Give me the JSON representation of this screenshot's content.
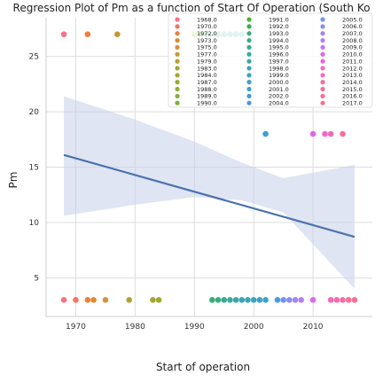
{
  "chart_data": {
    "type": "scatter",
    "title": "Regression Plot of Pm as a function of Start Of Operation (South Ko",
    "xlabel": "Start of operation",
    "ylabel": "Pm",
    "xlim": [
      1965,
      2020
    ],
    "ylim": [
      1.5,
      28.5
    ],
    "xticks": [
      1970,
      1980,
      1990,
      2000,
      2010
    ],
    "yticks": [
      5,
      10,
      15,
      20,
      25
    ],
    "grid": true,
    "legend_position": "top-right",
    "legend_entries": [
      {
        "label": "1968.0",
        "color": "#f77189"
      },
      {
        "label": "1970.0",
        "color": "#f6745f"
      },
      {
        "label": "1972.0",
        "color": "#ec7f3a"
      },
      {
        "label": "1973.0",
        "color": "#dd8a31"
      },
      {
        "label": "1975.0",
        "color": "#d2923b"
      },
      {
        "label": "1977.0",
        "color": "#c59932"
      },
      {
        "label": "1979.0",
        "color": "#b59f31"
      },
      {
        "label": "1983.0",
        "color": "#a9a432"
      },
      {
        "label": "1984.0",
        "color": "#a1a831"
      },
      {
        "label": "1987.0",
        "color": "#97ab32"
      },
      {
        "label": "1988.0",
        "color": "#8eae33"
      },
      {
        "label": "1989.0",
        "color": "#84b133"
      },
      {
        "label": "1990.0",
        "color": "#77b434"
      },
      {
        "label": "1991.0",
        "color": "#50b131"
      },
      {
        "label": "1992.0",
        "color": "#33b04b"
      },
      {
        "label": "1993.0",
        "color": "#35ae71"
      },
      {
        "label": "1994.0",
        "color": "#36ad84"
      },
      {
        "label": "1995.0",
        "color": "#37ab93"
      },
      {
        "label": "1996.0",
        "color": "#38aa9e"
      },
      {
        "label": "1997.0",
        "color": "#39a8a7"
      },
      {
        "label": "1998.0",
        "color": "#3aa7b0"
      },
      {
        "label": "1999.0",
        "color": "#3ba5b8"
      },
      {
        "label": "2000.0",
        "color": "#3ca3c1"
      },
      {
        "label": "2001.0",
        "color": "#3da1ca"
      },
      {
        "label": "2002.0",
        "color": "#3e9fd6"
      },
      {
        "label": "2004.0",
        "color": "#4a98e6"
      },
      {
        "label": "2005.0",
        "color": "#6f94ec"
      },
      {
        "label": "2006.0",
        "color": "#8a8cf2"
      },
      {
        "label": "2007.0",
        "color": "#a285f3"
      },
      {
        "label": "2008.0",
        "color": "#b67cf3"
      },
      {
        "label": "2009.0",
        "color": "#c973f1"
      },
      {
        "label": "2010.0",
        "color": "#dd68ec"
      },
      {
        "label": "2011.0",
        "color": "#f062e0"
      },
      {
        "label": "2012.0",
        "color": "#f565cc"
      },
      {
        "label": "2013.0",
        "color": "#f668bc"
      },
      {
        "label": "2014.0",
        "color": "#f66aae"
      },
      {
        "label": "2015.0",
        "color": "#f66ca3"
      },
      {
        "label": "2016.0",
        "color": "#f76e98"
      },
      {
        "label": "2017.0",
        "color": "#f7708f"
      }
    ],
    "points": [
      {
        "x": 1968,
        "y": 27
      },
      {
        "x": 1972,
        "y": 27
      },
      {
        "x": 1977,
        "y": 27
      },
      {
        "x": 1990,
        "y": 27
      },
      {
        "x": 1991,
        "y": 27
      },
      {
        "x": 1992,
        "y": 27
      },
      {
        "x": 1993,
        "y": 27
      },
      {
        "x": 1994,
        "y": 27
      },
      {
        "x": 1995,
        "y": 27
      },
      {
        "x": 1996,
        "y": 27
      },
      {
        "x": 1997,
        "y": 27
      },
      {
        "x": 1998,
        "y": 27
      },
      {
        "x": 2002,
        "y": 18
      },
      {
        "x": 2010,
        "y": 18
      },
      {
        "x": 2012,
        "y": 18
      },
      {
        "x": 2013,
        "y": 18
      },
      {
        "x": 2015,
        "y": 18
      },
      {
        "x": 1968,
        "y": 3
      },
      {
        "x": 1970,
        "y": 3
      },
      {
        "x": 1972,
        "y": 3
      },
      {
        "x": 1973,
        "y": 3
      },
      {
        "x": 1975,
        "y": 3
      },
      {
        "x": 1979,
        "y": 3
      },
      {
        "x": 1983,
        "y": 3
      },
      {
        "x": 1984,
        "y": 3
      },
      {
        "x": 1993,
        "y": 3
      },
      {
        "x": 1994,
        "y": 3
      },
      {
        "x": 1995,
        "y": 3
      },
      {
        "x": 1996,
        "y": 3
      },
      {
        "x": 1997,
        "y": 3
      },
      {
        "x": 1998,
        "y": 3
      },
      {
        "x": 1999,
        "y": 3
      },
      {
        "x": 2000,
        "y": 3
      },
      {
        "x": 2001,
        "y": 3
      },
      {
        "x": 2002,
        "y": 3
      },
      {
        "x": 2004,
        "y": 3
      },
      {
        "x": 2005,
        "y": 3
      },
      {
        "x": 2006,
        "y": 3
      },
      {
        "x": 2007,
        "y": 3
      },
      {
        "x": 2008,
        "y": 3
      },
      {
        "x": 2010,
        "y": 3
      },
      {
        "x": 2013,
        "y": 3
      },
      {
        "x": 2014,
        "y": 3
      },
      {
        "x": 2015,
        "y": 3
      },
      {
        "x": 2016,
        "y": 3
      },
      {
        "x": 2017,
        "y": 3
      }
    ],
    "regression": {
      "x": [
        1968,
        2017
      ],
      "y": [
        16.1,
        8.7
      ],
      "ci_x": [
        1968,
        1980,
        1990,
        1998,
        2005,
        2017
      ],
      "ci_upper": [
        21.4,
        19.3,
        17.3,
        15.4,
        14.0,
        15.2
      ],
      "ci_lower": [
        10.6,
        11.6,
        12.3,
        12.0,
        10.9,
        4.0
      ],
      "line_color": "#4c72b0",
      "band_color": "#c5d0e8"
    }
  }
}
